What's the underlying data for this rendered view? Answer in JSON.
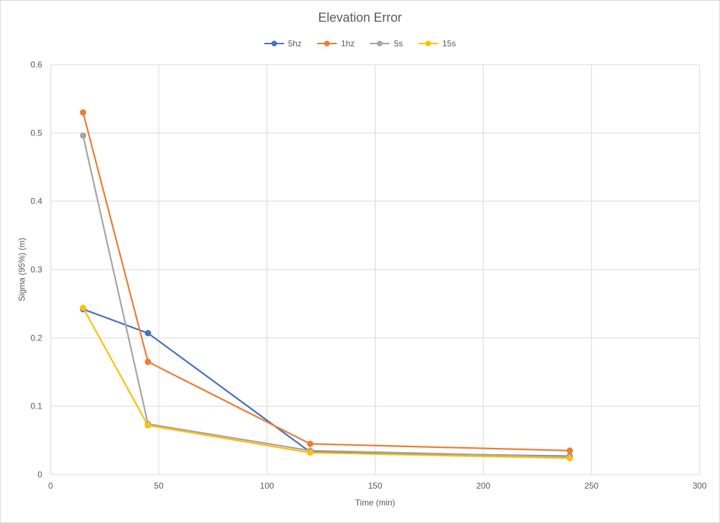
{
  "chart_data": {
    "type": "line",
    "title": "Elevation Error",
    "xlabel": "Time (min)",
    "ylabel": "Sigma (95%) (m)",
    "xlim": [
      0,
      300
    ],
    "ylim": [
      0,
      0.6
    ],
    "xticks": [
      "0",
      "50",
      "100",
      "150",
      "200",
      "250",
      "300"
    ],
    "yticks": [
      "0",
      "0.1",
      "0.2",
      "0.3",
      "0.4",
      "0.5",
      "0.6"
    ],
    "grid": true,
    "legend_position": "top",
    "series": [
      {
        "name": "5hz",
        "color": "#4472c4",
        "x": [
          15,
          45,
          120,
          240
        ],
        "y": [
          0.242,
          0.207,
          0.033,
          0.027
        ]
      },
      {
        "name": "1hz",
        "color": "#ed7d31",
        "x": [
          15,
          45,
          120,
          240
        ],
        "y": [
          0.53,
          0.165,
          0.045,
          0.035
        ]
      },
      {
        "name": "5s",
        "color": "#a5a5a5",
        "x": [
          15,
          45,
          120,
          240
        ],
        "y": [
          0.496,
          0.074,
          0.035,
          0.026
        ]
      },
      {
        "name": "15s",
        "color": "#ffc000",
        "x": [
          15,
          45,
          120,
          240
        ],
        "y": [
          0.244,
          0.072,
          0.032,
          0.024
        ]
      }
    ]
  }
}
